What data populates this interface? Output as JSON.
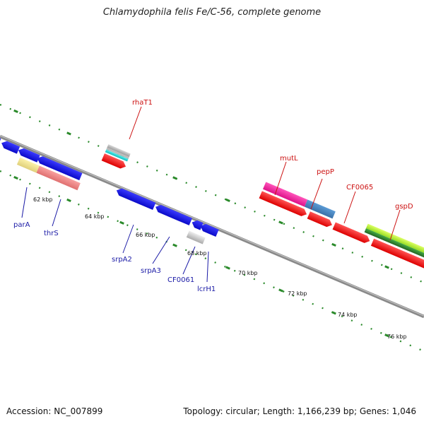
{
  "title": "Chlamydophila felis Fe/C-56, complete genome",
  "footer": {
    "accession": "Accession: NC_007899",
    "summary": "Topology: circular; Length: 1,166,239 bp; Genes: 1,046"
  },
  "tick_labels": [
    "62 kbp",
    "64 kbp",
    "66 kbp",
    "68 kbp",
    "70 kbp",
    "72 kbp",
    "74 kbp",
    "76 kbp"
  ],
  "gene_labels_forward": [
    "rhaT1",
    "mutL",
    "pepP",
    "CF0065",
    "gspD"
  ],
  "gene_labels_reverse": [
    "parA",
    "thrS",
    "srpA2",
    "srpA3",
    "CF0061",
    "lcrH1"
  ],
  "colors": {
    "backbone": "#8a8a8a",
    "forward_cds": "#ee1111",
    "reverse_cds": "#1212e0",
    "label_forward": "#cc1111",
    "label_reverse": "#1a1aa6",
    "tick_green": "#2a8a2a"
  }
}
